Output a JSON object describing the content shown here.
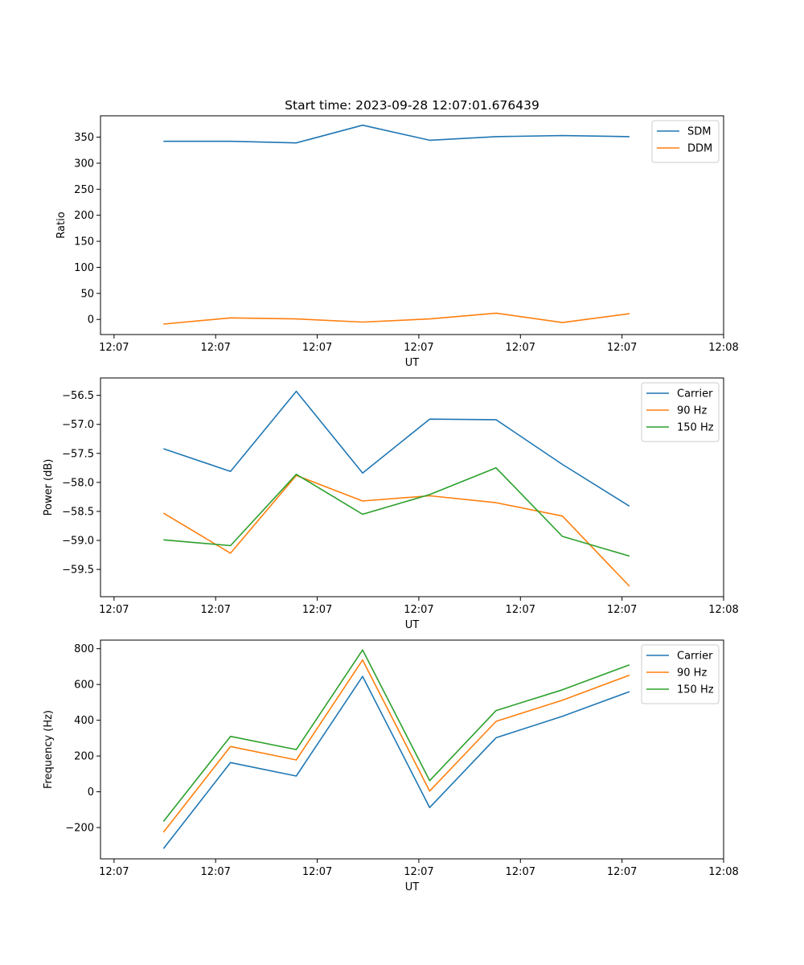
{
  "title": "Start time: 2023-09-28 12:07:01.676439",
  "chart_data": [
    {
      "type": "line",
      "ylabel": "Ratio",
      "xlabel": "UT",
      "xlim": [
        -0.2,
        9.0
      ],
      "ylim": [
        -29,
        391
      ],
      "x_ticks": [
        0,
        1.5,
        3,
        4.5,
        6,
        7.5,
        9
      ],
      "x_tick_labels": [
        "12:07",
        "12:07",
        "12:07",
        "12:07",
        "12:07",
        "12:07",
        "12:08"
      ],
      "y_ticks": [
        0,
        50,
        100,
        150,
        200,
        250,
        300,
        350
      ],
      "y_tick_labels": [
        "0",
        "50",
        "100",
        "150",
        "200",
        "250",
        "300",
        "350"
      ],
      "legend_position": "top-right",
      "x": [
        0.73,
        1.72,
        2.69,
        3.67,
        4.66,
        5.64,
        6.62,
        7.61
      ],
      "series": [
        {
          "name": "SDM",
          "color": "#1f77b4",
          "values": [
            342,
            342,
            339,
            373,
            344,
            351,
            353,
            351
          ]
        },
        {
          "name": "DDM",
          "color": "#ff7f0e",
          "values": [
            -9,
            3,
            1,
            -5,
            1,
            12,
            -6,
            11
          ]
        }
      ]
    },
    {
      "type": "line",
      "ylabel": "Power (dB)",
      "xlabel": "UT",
      "xlim": [
        -0.2,
        9.0
      ],
      "ylim": [
        -59.97,
        -56.2
      ],
      "x_ticks": [
        0,
        1.5,
        3,
        4.5,
        6,
        7.5,
        9
      ],
      "x_tick_labels": [
        "12:07",
        "12:07",
        "12:07",
        "12:07",
        "12:07",
        "12:07",
        "12:08"
      ],
      "y_ticks": [
        -59.5,
        -59.0,
        -58.5,
        -58.0,
        -57.5,
        -57.0,
        -56.5
      ],
      "y_tick_labels": [
        "−59.5",
        "−59.0",
        "−58.5",
        "−58.0",
        "−57.5",
        "−57.0",
        "−56.5"
      ],
      "legend_position": "top-right",
      "x": [
        0.73,
        1.72,
        2.69,
        3.67,
        4.66,
        5.64,
        6.62,
        7.61
      ],
      "series": [
        {
          "name": "Carrier",
          "color": "#1f77b4",
          "values": [
            -57.42,
            -57.81,
            -56.43,
            -57.84,
            -56.91,
            -56.92,
            -57.69,
            -58.41
          ]
        },
        {
          "name": "90 Hz",
          "color": "#ff7f0e",
          "values": [
            -58.53,
            -59.22,
            -57.88,
            -58.32,
            -58.23,
            -58.35,
            -58.58,
            -59.79
          ]
        },
        {
          "name": "150 Hz",
          "color": "#2ca02c",
          "values": [
            -58.99,
            -59.09,
            -57.86,
            -58.55,
            -58.21,
            -57.75,
            -58.93,
            -59.27
          ]
        }
      ]
    },
    {
      "type": "line",
      "ylabel": "Frequency (Hz)",
      "xlabel": "UT",
      "xlim": [
        -0.2,
        9.0
      ],
      "ylim": [
        -375,
        848
      ],
      "x_ticks": [
        0,
        1.5,
        3,
        4.5,
        6,
        7.5,
        9
      ],
      "x_tick_labels": [
        "12:07",
        "12:07",
        "12:07",
        "12:07",
        "12:07",
        "12:07",
        "12:08"
      ],
      "y_ticks": [
        -200,
        0,
        200,
        400,
        600,
        800
      ],
      "y_tick_labels": [
        "−200",
        "0",
        "200",
        "400",
        "600",
        "800"
      ],
      "legend_position": "top-right",
      "x": [
        0.73,
        1.72,
        2.69,
        3.67,
        4.66,
        5.64,
        6.62,
        7.61
      ],
      "series": [
        {
          "name": "Carrier",
          "color": "#1f77b4",
          "values": [
            -318,
            163,
            88,
            645,
            -88,
            302,
            422,
            560
          ]
        },
        {
          "name": "90 Hz",
          "color": "#ff7f0e",
          "values": [
            -226,
            253,
            178,
            737,
            4,
            394,
            512,
            652
          ]
        },
        {
          "name": "150 Hz",
          "color": "#2ca02c",
          "values": [
            -166,
            310,
            236,
            793,
            62,
            454,
            570,
            710
          ]
        }
      ]
    }
  ]
}
